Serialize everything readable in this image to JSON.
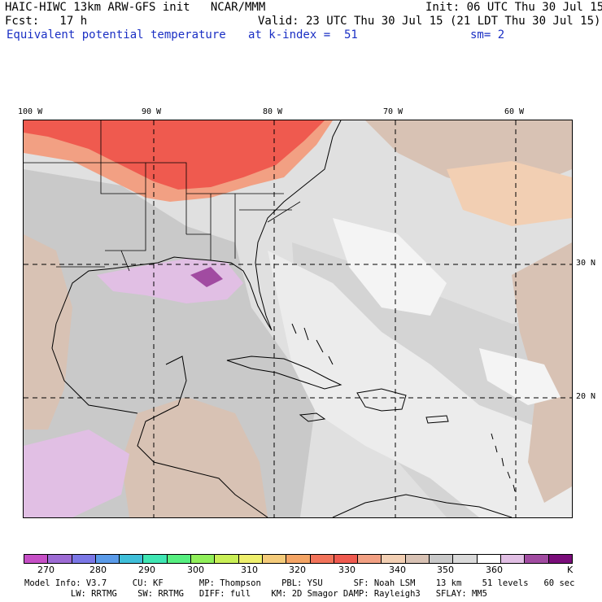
{
  "header": {
    "title": "HAIC-HIWC 13km ARW-GFS init   NCAR/MMM",
    "init": "Init: 06 UTC Thu 30 Jul 15",
    "fcst": "Fcst:   17 h",
    "valid": "Valid: 23 UTC Thu 30 Jul 15 (21 LDT Thu 30 Jul 15)",
    "field": "Equivalent potential temperature",
    "level": "at k-index =  51",
    "smoothing": "sm= 2"
  },
  "map": {
    "lon_labels": [
      "100 W",
      "90 W",
      "80 W",
      "70 W",
      "60 W"
    ],
    "lat_labels": [
      "30 N",
      "20 N"
    ]
  },
  "colorbar": {
    "colors": [
      "#c64fc6",
      "#9d6bd4",
      "#7b77e6",
      "#5a9be9",
      "#3fbfd9",
      "#3fe6b3",
      "#56ef80",
      "#90ef5a",
      "#c9ef56",
      "#eeef6c",
      "#f4cb7a",
      "#f4a464",
      "#f2735a",
      "#ef5a4f",
      "#f2a083",
      "#f2cfb3",
      "#d8c2b4",
      "#c9c9c9",
      "#dadada",
      "#ffffff",
      "#e1bfe4",
      "#a14ba1",
      "#7a0d7a"
    ],
    "tick_labels": [
      "270",
      "280",
      "290",
      "300",
      "310",
      "320",
      "330",
      "340",
      "350",
      "360"
    ],
    "unit": "K"
  },
  "model_info": {
    "line1": "Model Info: V3.7     CU: KF       MP: Thompson    PBL: YSU      SF: Noah LSM    13 km    51 levels   60 sec",
    "line2": "         LW: RRTMG    SW: RRTMG   DIFF: full    KM: 2D Smagor DAMP: Rayleigh3   SFLAY: MM5"
  }
}
